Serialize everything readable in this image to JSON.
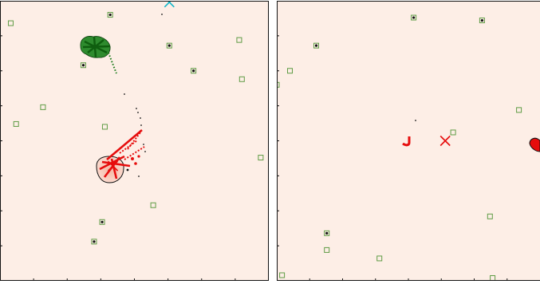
{
  "colors": {
    "background": "#fdeee6",
    "frame": "#111111",
    "green": "#1a7a1a",
    "green_box": "#5f9c45",
    "red": "#e60d0d",
    "cyan": "#14b6c8",
    "black": "#111111"
  },
  "chart_data": [
    {
      "type": "scatter",
      "title": "",
      "xlabel": "",
      "ylabel": "",
      "xlim": [
        0,
        1
      ],
      "ylim": [
        0,
        1
      ],
      "grid": false,
      "legend": "none",
      "series": [
        {
          "marker": "green-square",
          "points": [
            [
              0.04,
              0.92
            ],
            [
              0.41,
              0.95
            ],
            [
              0.63,
              0.84
            ],
            [
              0.89,
              0.86
            ],
            [
              0.31,
              0.77
            ],
            [
              0.72,
              0.75
            ],
            [
              0.9,
              0.72
            ],
            [
              0.16,
              0.62
            ],
            [
              0.06,
              0.56
            ],
            [
              0.39,
              0.55
            ],
            [
              0.97,
              0.44
            ],
            [
              0.57,
              0.27
            ],
            [
              0.38,
              0.21
            ],
            [
              0.35,
              0.14
            ]
          ]
        },
        {
          "marker": "black-dot",
          "points": [
            [
              0.41,
              0.95
            ],
            [
              0.63,
              0.84
            ],
            [
              0.31,
              0.77
            ],
            [
              0.72,
              0.75
            ],
            [
              0.38,
              0.21
            ],
            [
              0.35,
              0.14
            ]
          ]
        },
        {
          "marker": "cyan-x",
          "points": [
            [
              0.63,
              0.995
            ]
          ]
        },
        {
          "marker": "red-x",
          "points": [
            [
              0.42,
              0.41
            ]
          ]
        }
      ],
      "regions": [
        {
          "marker": "green-blob",
          "center": [
            0.35,
            0.83
          ]
        },
        {
          "marker": "red-blob",
          "center": [
            0.43,
            0.4
          ]
        }
      ]
    },
    {
      "type": "scatter",
      "title": "",
      "xlabel": "",
      "ylabel": "",
      "xlim": [
        0,
        1
      ],
      "ylim": [
        0,
        1
      ],
      "grid": false,
      "legend": "none",
      "series": [
        {
          "marker": "green-square",
          "points": [
            [
              0.52,
              0.94
            ],
            [
              0.78,
              0.93
            ],
            [
              0.15,
              0.84
            ],
            [
              0.05,
              0.75
            ],
            [
              0.0,
              0.7
            ],
            [
              0.92,
              0.61
            ],
            [
              0.67,
              0.53
            ],
            [
              0.81,
              0.23
            ],
            [
              0.19,
              0.17
            ],
            [
              0.19,
              0.11
            ],
            [
              0.39,
              0.08
            ],
            [
              0.02,
              0.02
            ],
            [
              0.82,
              0.01
            ]
          ]
        },
        {
          "marker": "black-dot",
          "points": [
            [
              0.52,
              0.94
            ],
            [
              0.78,
              0.93
            ],
            [
              0.15,
              0.84
            ],
            [
              0.19,
              0.17
            ]
          ]
        },
        {
          "marker": "red-x",
          "points": [
            [
              0.64,
              0.5
            ]
          ]
        }
      ],
      "regions": [
        {
          "marker": "red-hook",
          "center": [
            0.48,
            0.5
          ]
        },
        {
          "marker": "red-blob",
          "center": [
            0.99,
            0.49
          ]
        }
      ]
    }
  ]
}
